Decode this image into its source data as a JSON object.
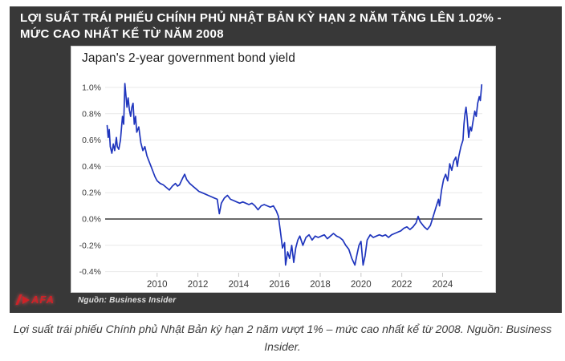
{
  "header": {
    "line1": "LỢI SUẤT TRÁI PHIẾU CHÍNH PHỦ NHẬT BẢN KỲ HẠN 2 NĂM TĂNG LÊN 1.02% -",
    "line2": "MỨC CAO NHẤT KỂ TỪ NĂM 2008"
  },
  "chart_data": {
    "type": "line",
    "title": "Japan's 2-year government bond yield",
    "unit": "%",
    "xlim": [
      2007.45,
      2025.95
    ],
    "ylim": [
      -0.45,
      1.06
    ],
    "grid": "horizontal",
    "zero_line": true,
    "legend": "none",
    "y_ticks": [
      {
        "label": "1.0%",
        "value": 1.0
      },
      {
        "label": "0.8%",
        "value": 0.8
      },
      {
        "label": "0.6%",
        "value": 0.6
      },
      {
        "label": "0.4%",
        "value": 0.4
      },
      {
        "label": "0.2%",
        "value": 0.2
      },
      {
        "label": "0.0%",
        "value": 0.0
      },
      {
        "label": "-0.2%",
        "value": -0.2
      },
      {
        "label": "-0.4%",
        "value": -0.4
      }
    ],
    "x_ticks": [
      {
        "label": "2010",
        "value": 2010
      },
      {
        "label": "2012",
        "value": 2012
      },
      {
        "label": "2014",
        "value": 2014
      },
      {
        "label": "2016",
        "value": 2016
      },
      {
        "label": "2018",
        "value": 2018
      },
      {
        "label": "2020",
        "value": 2020
      },
      {
        "label": "2022",
        "value": 2022
      },
      {
        "label": "2024",
        "value": 2024
      }
    ],
    "series": [
      {
        "name": "Japan 2-year government bond yield",
        "color": "#1f35bd",
        "points": [
          [
            2007.55,
            0.71
          ],
          [
            2007.6,
            0.62
          ],
          [
            2007.65,
            0.68
          ],
          [
            2007.7,
            0.55
          ],
          [
            2007.78,
            0.5
          ],
          [
            2007.85,
            0.57
          ],
          [
            2007.92,
            0.52
          ],
          [
            2008.0,
            0.62
          ],
          [
            2008.05,
            0.55
          ],
          [
            2008.12,
            0.53
          ],
          [
            2008.2,
            0.6
          ],
          [
            2008.3,
            0.78
          ],
          [
            2008.36,
            0.72
          ],
          [
            2008.42,
            1.03
          ],
          [
            2008.48,
            0.92
          ],
          [
            2008.52,
            0.85
          ],
          [
            2008.58,
            0.92
          ],
          [
            2008.64,
            0.83
          ],
          [
            2008.7,
            0.78
          ],
          [
            2008.76,
            0.85
          ],
          [
            2008.82,
            0.88
          ],
          [
            2008.88,
            0.72
          ],
          [
            2008.94,
            0.78
          ],
          [
            2009.0,
            0.66
          ],
          [
            2009.1,
            0.7
          ],
          [
            2009.2,
            0.58
          ],
          [
            2009.3,
            0.52
          ],
          [
            2009.4,
            0.55
          ],
          [
            2009.5,
            0.48
          ],
          [
            2009.6,
            0.44
          ],
          [
            2009.7,
            0.4
          ],
          [
            2009.8,
            0.36
          ],
          [
            2009.9,
            0.32
          ],
          [
            2010.0,
            0.29
          ],
          [
            2010.15,
            0.27
          ],
          [
            2010.3,
            0.26
          ],
          [
            2010.45,
            0.24
          ],
          [
            2010.6,
            0.22
          ],
          [
            2010.75,
            0.25
          ],
          [
            2010.9,
            0.27
          ],
          [
            2011.0,
            0.25
          ],
          [
            2011.1,
            0.26
          ],
          [
            2011.25,
            0.31
          ],
          [
            2011.35,
            0.34
          ],
          [
            2011.45,
            0.3
          ],
          [
            2011.6,
            0.27
          ],
          [
            2011.75,
            0.25
          ],
          [
            2011.9,
            0.23
          ],
          [
            2012.05,
            0.21
          ],
          [
            2012.2,
            0.2
          ],
          [
            2012.35,
            0.19
          ],
          [
            2012.5,
            0.18
          ],
          [
            2012.65,
            0.17
          ],
          [
            2012.8,
            0.16
          ],
          [
            2012.95,
            0.15
          ],
          [
            2013.05,
            0.04
          ],
          [
            2013.15,
            0.12
          ],
          [
            2013.3,
            0.16
          ],
          [
            2013.45,
            0.18
          ],
          [
            2013.6,
            0.15
          ],
          [
            2013.75,
            0.14
          ],
          [
            2013.9,
            0.13
          ],
          [
            2014.05,
            0.12
          ],
          [
            2014.2,
            0.13
          ],
          [
            2014.35,
            0.12
          ],
          [
            2014.5,
            0.11
          ],
          [
            2014.65,
            0.12
          ],
          [
            2014.8,
            0.1
          ],
          [
            2014.95,
            0.07
          ],
          [
            2015.1,
            0.1
          ],
          [
            2015.25,
            0.11
          ],
          [
            2015.4,
            0.1
          ],
          [
            2015.55,
            0.09
          ],
          [
            2015.7,
            0.1
          ],
          [
            2015.85,
            0.06
          ],
          [
            2015.95,
            0.02
          ],
          [
            2016.05,
            -0.1
          ],
          [
            2016.15,
            -0.22
          ],
          [
            2016.25,
            -0.18
          ],
          [
            2016.3,
            -0.35
          ],
          [
            2016.4,
            -0.25
          ],
          [
            2016.5,
            -0.3
          ],
          [
            2016.6,
            -0.2
          ],
          [
            2016.7,
            -0.33
          ],
          [
            2016.8,
            -0.22
          ],
          [
            2016.9,
            -0.16
          ],
          [
            2017.0,
            -0.13
          ],
          [
            2017.15,
            -0.2
          ],
          [
            2017.3,
            -0.14
          ],
          [
            2017.45,
            -0.12
          ],
          [
            2017.6,
            -0.16
          ],
          [
            2017.75,
            -0.13
          ],
          [
            2017.9,
            -0.14
          ],
          [
            2018.05,
            -0.13
          ],
          [
            2018.2,
            -0.12
          ],
          [
            2018.35,
            -0.15
          ],
          [
            2018.5,
            -0.13
          ],
          [
            2018.65,
            -0.11
          ],
          [
            2018.8,
            -0.13
          ],
          [
            2018.95,
            -0.14
          ],
          [
            2019.1,
            -0.16
          ],
          [
            2019.25,
            -0.2
          ],
          [
            2019.4,
            -0.23
          ],
          [
            2019.55,
            -0.3
          ],
          [
            2019.7,
            -0.35
          ],
          [
            2019.8,
            -0.27
          ],
          [
            2019.9,
            -0.2
          ],
          [
            2020.0,
            -0.17
          ],
          [
            2020.1,
            -0.35
          ],
          [
            2020.2,
            -0.28
          ],
          [
            2020.3,
            -0.16
          ],
          [
            2020.45,
            -0.12
          ],
          [
            2020.6,
            -0.14
          ],
          [
            2020.75,
            -0.13
          ],
          [
            2020.9,
            -0.12
          ],
          [
            2021.05,
            -0.13
          ],
          [
            2021.2,
            -0.12
          ],
          [
            2021.35,
            -0.14
          ],
          [
            2021.5,
            -0.12
          ],
          [
            2021.65,
            -0.11
          ],
          [
            2021.8,
            -0.1
          ],
          [
            2021.95,
            -0.09
          ],
          [
            2022.1,
            -0.07
          ],
          [
            2022.25,
            -0.06
          ],
          [
            2022.4,
            -0.08
          ],
          [
            2022.55,
            -0.06
          ],
          [
            2022.7,
            -0.03
          ],
          [
            2022.8,
            0.02
          ],
          [
            2022.9,
            -0.02
          ],
          [
            2023.0,
            -0.04
          ],
          [
            2023.1,
            -0.06
          ],
          [
            2023.25,
            -0.08
          ],
          [
            2023.4,
            -0.05
          ],
          [
            2023.5,
            0.0
          ],
          [
            2023.6,
            0.05
          ],
          [
            2023.7,
            0.1
          ],
          [
            2023.8,
            0.15
          ],
          [
            2023.85,
            0.1
          ],
          [
            2023.95,
            0.22
          ],
          [
            2024.05,
            0.3
          ],
          [
            2024.15,
            0.34
          ],
          [
            2024.25,
            0.29
          ],
          [
            2024.35,
            0.42
          ],
          [
            2024.45,
            0.37
          ],
          [
            2024.55,
            0.44
          ],
          [
            2024.65,
            0.47
          ],
          [
            2024.72,
            0.4
          ],
          [
            2024.8,
            0.48
          ],
          [
            2024.9,
            0.55
          ],
          [
            2025.0,
            0.6
          ],
          [
            2025.05,
            0.72
          ],
          [
            2025.1,
            0.8
          ],
          [
            2025.15,
            0.85
          ],
          [
            2025.2,
            0.78
          ],
          [
            2025.28,
            0.62
          ],
          [
            2025.35,
            0.7
          ],
          [
            2025.42,
            0.67
          ],
          [
            2025.5,
            0.75
          ],
          [
            2025.58,
            0.82
          ],
          [
            2025.65,
            0.78
          ],
          [
            2025.72,
            0.88
          ],
          [
            2025.8,
            0.93
          ],
          [
            2025.85,
            0.9
          ],
          [
            2025.92,
            1.02
          ]
        ]
      }
    ]
  },
  "footer": {
    "logo_text": "AFA",
    "source": "Nguồn: Business Insider"
  },
  "caption": {
    "line1": "Lợi suất trái phiếu Chính phủ Nhật Bản kỳ hạn 2 năm vượt 1% – mức cao nhất kể từ 2008. Nguồn: Business",
    "line2": "Insider."
  },
  "colors": {
    "panel_bg": "#383838",
    "line_blue": "#1f35bd",
    "logo_red": "#cf2127",
    "zero_line": "#111111",
    "grid": "#e9e9e9"
  }
}
